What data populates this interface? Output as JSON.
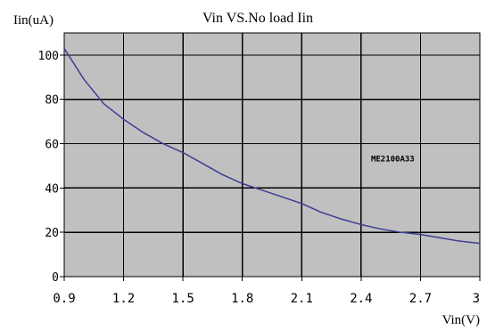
{
  "chart_data": {
    "type": "line",
    "title": "Vin VS.No load Iin",
    "xlabel": "Vin(V)",
    "ylabel": "Iin(uA)",
    "xlim": [
      0.9,
      3
    ],
    "ylim": [
      0,
      110
    ],
    "x_ticks": [
      "0.9",
      "1.2",
      "1.5",
      "1.8",
      "2.1",
      "2.4",
      "2.7",
      "3"
    ],
    "y_ticks": [
      "0",
      "20",
      "40",
      "60",
      "80",
      "100"
    ],
    "grid": true,
    "background": "#c0c0c0",
    "grid_color": "#000000",
    "series": [
      {
        "color": "#3d3d96",
        "x": [
          0.9,
          1.0,
          1.1,
          1.2,
          1.3,
          1.4,
          1.5,
          1.6,
          1.7,
          1.8,
          1.9,
          2.0,
          2.1,
          2.2,
          2.3,
          2.4,
          2.5,
          2.6,
          2.7,
          2.8,
          2.9,
          3.0
        ],
        "y": [
          103,
          89,
          78,
          71,
          65,
          60,
          56,
          51,
          46,
          42,
          39,
          36,
          33,
          29,
          26,
          23.5,
          21.5,
          20,
          19,
          17.5,
          16,
          15
        ]
      }
    ],
    "annotations": [
      {
        "text": "ME2100A33",
        "x": 2.45,
        "y": 52
      }
    ]
  }
}
